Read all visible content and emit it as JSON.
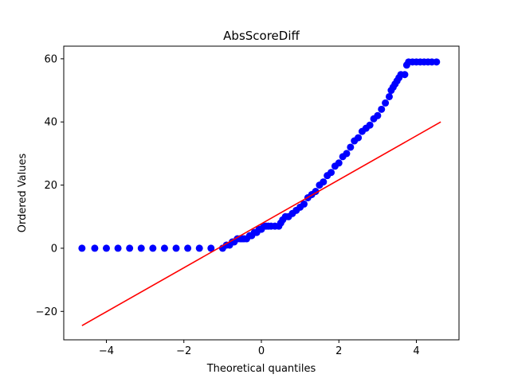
{
  "chart_data": {
    "type": "scatter",
    "title": "AbsScoreDiff",
    "xlabel": "Theoretical quantiles",
    "ylabel": "Ordered Values",
    "xlim": [
      -5.1,
      5.1
    ],
    "ylim": [
      -29,
      64
    ],
    "xticks": [
      -4,
      -2,
      0,
      2,
      4
    ],
    "yticks": [
      -20,
      0,
      20,
      40,
      60
    ],
    "grid": false,
    "colors": {
      "points": "#0000ff",
      "fit_line": "#ff0000"
    },
    "series": [
      {
        "kind": "points",
        "x": [
          -4.63,
          -4.3,
          -4.0,
          -3.7,
          -3.4,
          -3.1,
          -2.8,
          -2.5,
          -2.2,
          -1.9,
          -1.6,
          -1.3,
          -1.0,
          -0.9,
          -0.82,
          -0.75,
          -0.7,
          -0.62,
          -0.55,
          -0.5,
          -0.45,
          -0.38,
          -0.3,
          -0.25,
          -0.18,
          -0.12,
          -0.06,
          0.0,
          0.06,
          0.12,
          0.18,
          0.25,
          0.35,
          0.45,
          0.5,
          0.55,
          0.62,
          0.7,
          0.8,
          0.9,
          1.0,
          1.1,
          1.2,
          1.3,
          1.4,
          1.5,
          1.6,
          1.7,
          1.8,
          1.9,
          2.0,
          2.1,
          2.2,
          2.3,
          2.4,
          2.5,
          2.6,
          2.7,
          2.8,
          2.9,
          3.0,
          3.1,
          3.2,
          3.3,
          3.35,
          3.4,
          3.45,
          3.5,
          3.55,
          3.6,
          3.7,
          3.75,
          3.8,
          3.9,
          4.0,
          4.1,
          4.2,
          4.3,
          4.4,
          4.52
        ],
        "y": [
          0,
          0,
          0,
          0,
          0,
          0,
          0,
          0,
          0,
          0,
          0,
          0,
          0,
          1,
          1,
          2,
          2,
          3,
          3,
          3,
          3,
          3,
          4,
          4,
          5,
          5,
          6,
          6,
          7,
          7,
          7,
          7,
          7,
          7,
          8,
          9,
          10,
          10,
          11,
          12,
          13,
          14,
          16,
          17,
          18,
          20,
          21,
          23,
          24,
          26,
          27,
          29,
          30,
          32,
          34,
          35,
          37,
          38,
          39,
          41,
          42,
          44,
          46,
          48,
          50,
          51,
          52,
          53,
          54,
          55,
          55,
          58,
          59,
          59,
          59,
          59,
          59,
          59,
          59,
          59
        ]
      },
      {
        "kind": "line",
        "x": [
          -4.63,
          4.63
        ],
        "y": [
          -24.5,
          40
        ]
      }
    ]
  }
}
